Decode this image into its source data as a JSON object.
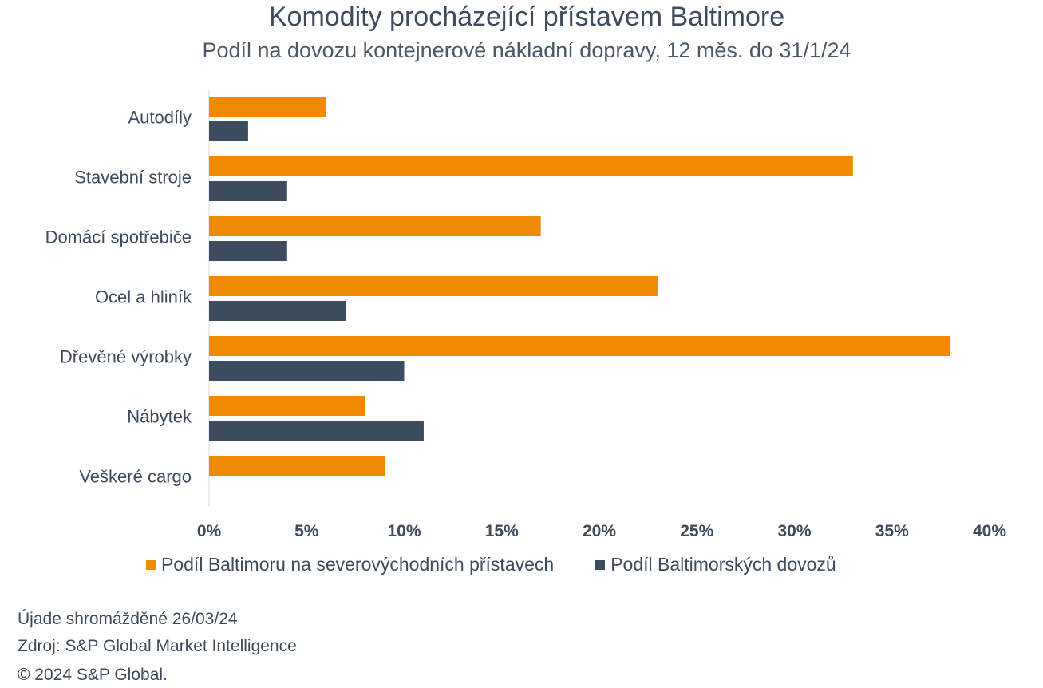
{
  "chart_data": {
    "type": "bar",
    "orientation": "horizontal",
    "title": "Komodity procházející přístavem Baltimore",
    "subtitle": "Podíl na dovozu kontejnerové nákladní dopravy, 12 měs. do 31/1/24",
    "categories": [
      "Autodíly",
      "Stavební stroje",
      "Domácí spotřebiče",
      "Ocel a hliník",
      "Dřevěné výrobky",
      "Nábytek",
      "Veškeré cargo"
    ],
    "series": [
      {
        "name": "Podíl Baltimoru na severovýchodních přístavech",
        "color": "#f08a00",
        "values": [
          6,
          33,
          17,
          23,
          38,
          8,
          9
        ]
      },
      {
        "name": "Podíl Baltimorských dovozů",
        "color": "#3d4b5f",
        "values": [
          2,
          4,
          4,
          7,
          10,
          11,
          null
        ]
      }
    ],
    "xlim": [
      0,
      40
    ],
    "xticks": [
      "0%",
      "5%",
      "10%",
      "15%",
      "20%",
      "25%",
      "30%",
      "35%",
      "40%"
    ],
    "grid": false,
    "legend_position": "bottom"
  },
  "footer": {
    "line1": "Újade shromážděné 26/03/24",
    "line2": "Zdroj: S&P Global Market Intelligence",
    "line3": "© 2024 S&P Global."
  }
}
